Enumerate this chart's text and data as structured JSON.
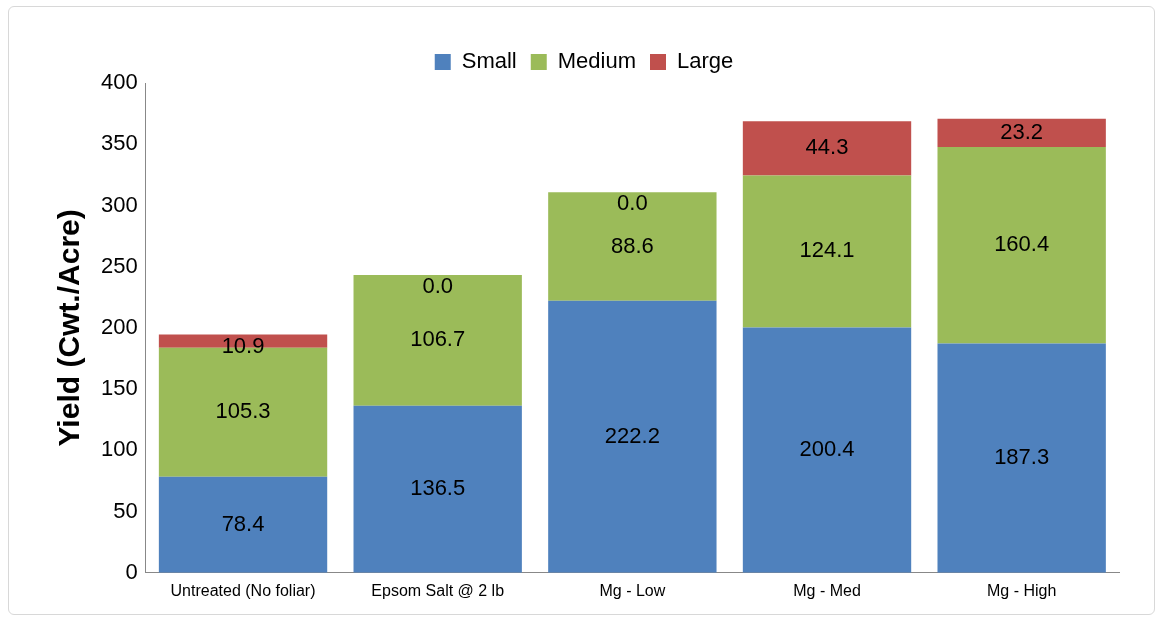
{
  "chart_data": {
    "type": "bar",
    "stacked": true,
    "ylabel": "Yield (Cwt./Acre)",
    "categories": [
      "Untreated (No foliar)",
      "Epsom Salt @ 2 lb",
      "Mg - Low",
      "Mg - Med",
      "Mg - High"
    ],
    "series": [
      {
        "name": "Small",
        "color": "#4f81bd",
        "values": [
          78.4,
          136.5,
          222.2,
          200.4,
          187.3
        ],
        "value_labels": [
          "78.4",
          "136.5",
          "222.2",
          "200.4",
          "187.3"
        ]
      },
      {
        "name": "Medium",
        "color": "#9bbb59",
        "values": [
          105.3,
          106.7,
          88.6,
          124.1,
          160.4
        ],
        "value_labels": [
          "105.3",
          "106.7",
          "88.6",
          "124.1",
          "160.4"
        ]
      },
      {
        "name": "Large",
        "color": "#c0504d",
        "values": [
          10.9,
          0.0,
          0.0,
          44.3,
          23.2
        ],
        "value_labels": [
          "10.9",
          "0.0",
          "0.0",
          "44.3",
          "23.2"
        ]
      }
    ],
    "ylim": [
      0,
      400
    ],
    "yticks": [
      0,
      50,
      100,
      150,
      200,
      250,
      300,
      350,
      400
    ],
    "grid": false,
    "legend": "top"
  }
}
